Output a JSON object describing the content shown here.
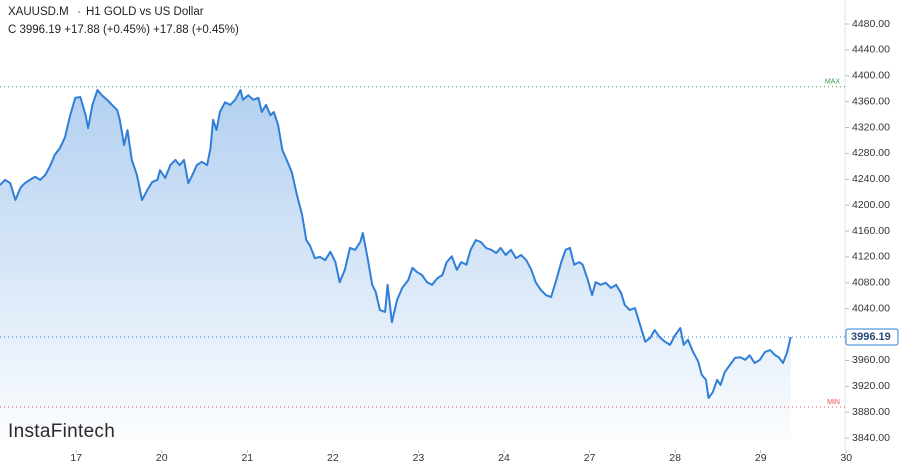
{
  "chart_data": {
    "type": "area-line",
    "symbol": "XAUUSD.M",
    "title": "H1 GOLD vs US Dollar",
    "subtitle": "C 3996.19 +17.88 (+0.45%) +17.88 (+0.45%)",
    "watermark": "InstaFintech",
    "color": "#2f7fd8",
    "x": [
      -0.89,
      -0.83,
      -0.77,
      -0.71,
      -0.65,
      -0.6,
      -0.54,
      -0.48,
      -0.42,
      -0.36,
      -0.3,
      -0.25,
      -0.19,
      -0.13,
      -0.07,
      -0.01,
      0.05,
      0.11,
      0.14,
      0.19,
      0.25,
      0.3,
      0.36,
      0.42,
      0.48,
      0.51,
      0.56,
      0.6,
      0.65,
      0.71,
      0.77,
      0.83,
      0.89,
      0.95,
      0.98,
      1.04,
      1.1,
      1.16,
      1.21,
      1.26,
      1.31,
      1.36,
      1.41,
      1.47,
      1.53,
      1.57,
      1.6,
      1.64,
      1.68,
      1.74,
      1.8,
      1.86,
      1.92,
      1.95,
      2.01,
      2.07,
      2.13,
      2.17,
      2.22,
      2.27,
      2.31,
      2.36,
      2.41,
      2.46,
      2.52,
      2.58,
      2.64,
      2.69,
      2.73,
      2.79,
      2.85,
      2.91,
      2.97,
      3.03,
      3.08,
      3.14,
      3.2,
      3.26,
      3.32,
      3.35,
      3.41,
      3.46,
      3.5,
      3.55,
      3.61,
      3.64,
      3.69,
      3.75,
      3.81,
      3.88,
      3.93,
      3.98,
      4.04,
      4.1,
      4.16,
      4.22,
      4.28,
      4.33,
      4.39,
      4.45,
      4.5,
      4.56,
      4.61,
      4.67,
      4.73,
      4.79,
      4.85,
      4.91,
      4.96,
      5.02,
      5.08,
      5.14,
      5.2,
      5.26,
      5.32,
      5.37,
      5.43,
      5.49,
      5.55,
      5.61,
      5.67,
      5.72,
      5.77,
      5.82,
      5.88,
      5.92,
      5.98,
      6.03,
      6.07,
      6.13,
      6.19,
      6.25,
      6.31,
      6.37,
      6.41,
      6.47,
      6.53,
      6.59,
      6.65,
      6.71,
      6.76,
      6.82,
      6.88,
      6.94,
      7.0,
      7.06,
      7.1,
      7.15,
      7.21,
      7.27,
      7.31,
      7.36,
      7.39,
      7.44,
      7.49,
      7.53,
      7.58,
      7.64,
      7.7,
      7.76,
      7.82,
      7.87,
      7.93,
      7.99,
      8.05,
      8.11,
      8.17,
      8.21,
      8.26,
      8.31,
      8.35
    ],
    "values": [
      4231,
      4239,
      4234,
      4208,
      4227,
      4234,
      4239,
      4244,
      4239,
      4247,
      4262,
      4278,
      4288,
      4305,
      4339,
      4366,
      4367,
      4339,
      4319,
      4355,
      4378,
      4370,
      4363,
      4355,
      4347,
      4332,
      4293,
      4316,
      4270,
      4247,
      4208,
      4223,
      4236,
      4239,
      4254,
      4242,
      4262,
      4270,
      4262,
      4270,
      4234,
      4247,
      4262,
      4267,
      4262,
      4288,
      4332,
      4316,
      4344,
      4359,
      4355,
      4363,
      4378,
      4363,
      4370,
      4363,
      4366,
      4344,
      4355,
      4339,
      4344,
      4324,
      4285,
      4270,
      4251,
      4216,
      4185,
      4146,
      4138,
      4118,
      4120,
      4115,
      4128,
      4112,
      4081,
      4100,
      4134,
      4131,
      4143,
      4157,
      4115,
      4077,
      4066,
      4038,
      4035,
      4077,
      4019,
      4053,
      4072,
      4084,
      4103,
      4097,
      4092,
      4081,
      4077,
      4087,
      4092,
      4112,
      4121,
      4100,
      4112,
      4108,
      4131,
      4146,
      4143,
      4134,
      4131,
      4126,
      4134,
      4123,
      4131,
      4118,
      4123,
      4115,
      4100,
      4081,
      4069,
      4061,
      4058,
      4084,
      4112,
      4131,
      4134,
      4108,
      4112,
      4108,
      4084,
      4061,
      4081,
      4077,
      4080,
      4072,
      4077,
      4064,
      4046,
      4038,
      4041,
      4015,
      3989,
      3995,
      4007,
      3996,
      3989,
      3984,
      3999,
      4010,
      3984,
      3992,
      3973,
      3958,
      3938,
      3930,
      3902,
      3911,
      3930,
      3922,
      3942,
      3953,
      3964,
      3965,
      3961,
      3968,
      3956,
      3961,
      3973,
      3976,
      3968,
      3965,
      3956,
      3973,
      3996.19
    ],
    "last_price": 3996.19,
    "max_line": {
      "value": 4383,
      "label": "MAX",
      "color": "#3a9a4a"
    },
    "min_line": {
      "value": 3888,
      "label": "MIN",
      "color": "#e05050"
    },
    "xlim": [
      -0.89,
      9.02
    ],
    "xticks": [
      {
        "value": 0,
        "label": "17"
      },
      {
        "value": 1,
        "label": "20"
      },
      {
        "value": 2,
        "label": "21"
      },
      {
        "value": 3,
        "label": "22"
      },
      {
        "value": 4,
        "label": "23"
      },
      {
        "value": 5,
        "label": "24"
      },
      {
        "value": 6,
        "label": "27"
      },
      {
        "value": 7,
        "label": "28"
      },
      {
        "value": 8,
        "label": "29"
      },
      {
        "value": 9,
        "label": "30"
      }
    ],
    "ylim": [
      3821.6,
      4517.1
    ],
    "yticks": [
      {
        "value": 3840,
        "label": "3840.00"
      },
      {
        "value": 3880,
        "label": "3880.00"
      },
      {
        "value": 3920,
        "label": "3920.00"
      },
      {
        "value": 3960,
        "label": "3960.00"
      },
      {
        "value": 4000,
        "label": "4000.00"
      },
      {
        "value": 4040,
        "label": "4040.00"
      },
      {
        "value": 4080,
        "label": "4080.00"
      },
      {
        "value": 4120,
        "label": "4120.00"
      },
      {
        "value": 4160,
        "label": "4160.00"
      },
      {
        "value": 4200,
        "label": "4200.00"
      },
      {
        "value": 4240,
        "label": "4240.00"
      },
      {
        "value": 4280,
        "label": "4280.00"
      },
      {
        "value": 4320,
        "label": "4320.00"
      },
      {
        "value": 4360,
        "label": "4360.00"
      },
      {
        "value": 4400,
        "label": "4400.00"
      },
      {
        "value": 4440,
        "label": "4440.00"
      },
      {
        "value": 4480,
        "label": "4480.00"
      }
    ],
    "grid": false
  }
}
